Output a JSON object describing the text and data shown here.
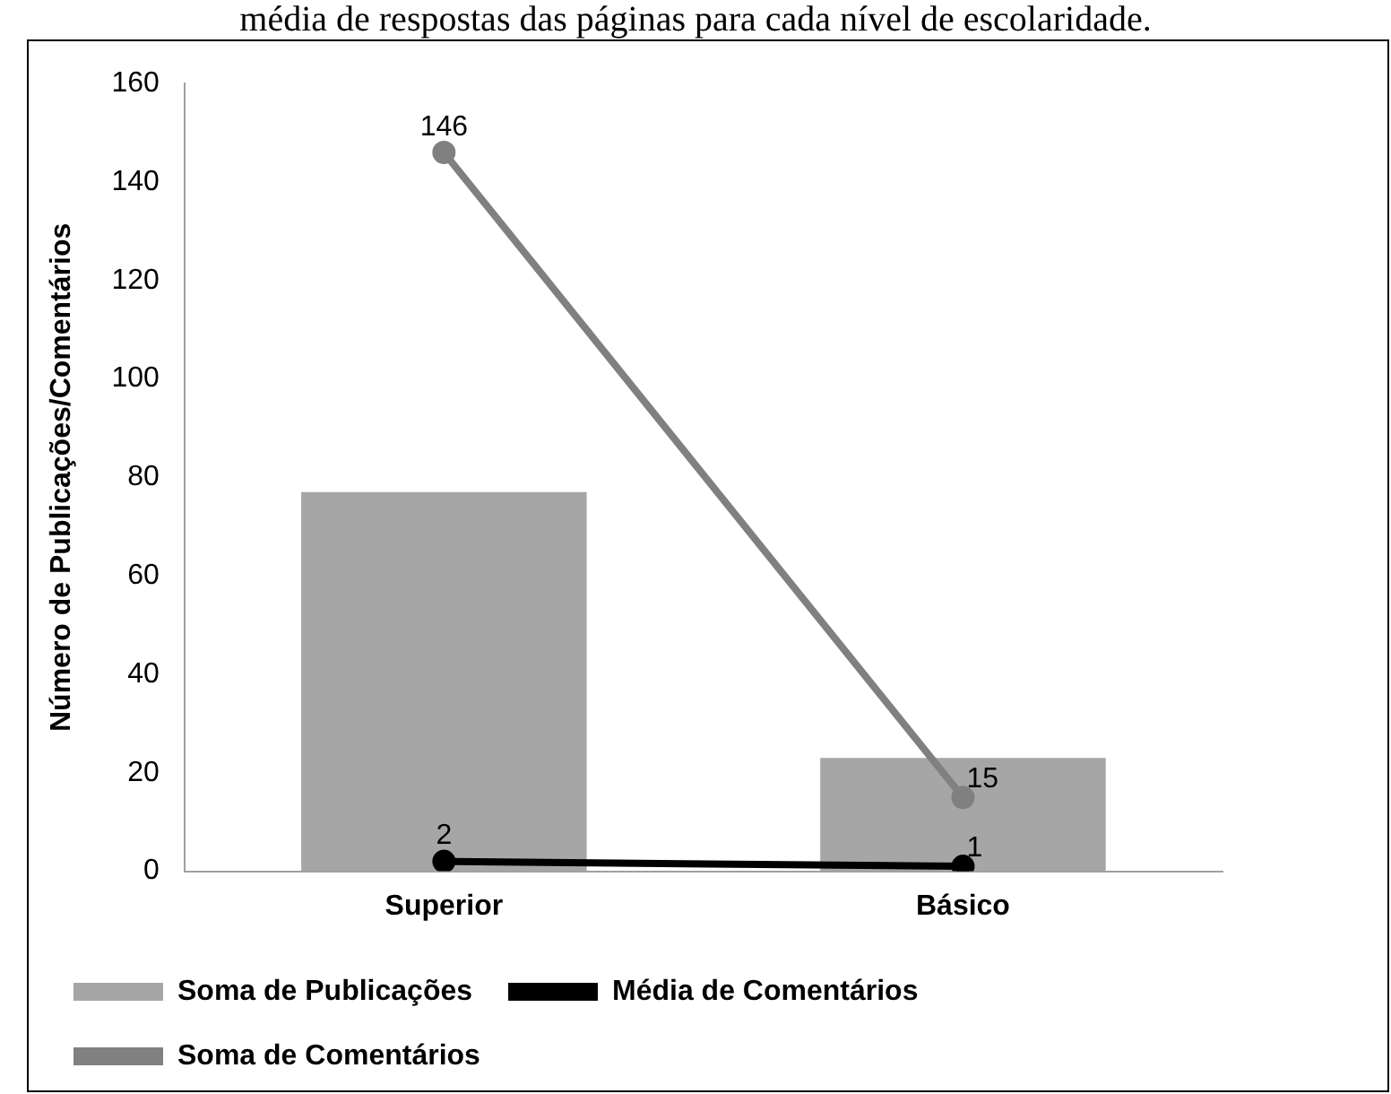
{
  "chart_data": {
    "type": "bar",
    "title": "média de respostas das páginas para cada nível de escolaridade.",
    "ylabel": "Número de Publicações/Comentários",
    "categories": [
      "Superior",
      "Básico"
    ],
    "series": [
      {
        "name": "Soma de Publicações",
        "color": "#a6a6a6",
        "values": [
          77,
          23
        ]
      },
      {
        "name": "Média de Comentários",
        "type": "line",
        "color": "#000000",
        "values": [
          2,
          1
        ],
        "value_labels": [
          "2",
          "1"
        ]
      },
      {
        "name": "Soma de Comentários",
        "type": "line",
        "color": "#808080",
        "values": [
          146,
          15
        ],
        "value_labels": [
          "146",
          "15"
        ]
      }
    ],
    "ylim": [
      0,
      160
    ],
    "yticks": [
      0,
      20,
      40,
      60,
      80,
      100,
      120,
      140,
      160
    ],
    "grid": false,
    "legend": "bottom",
    "marker": "circle"
  }
}
